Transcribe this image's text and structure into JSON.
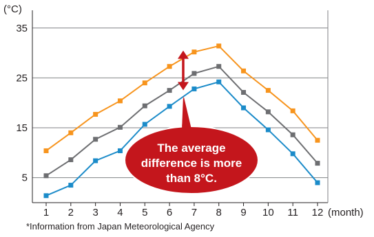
{
  "chart_data": {
    "type": "line",
    "y_unit": "(°C)",
    "x_unit": "(month)",
    "categories": [
      "1",
      "2",
      "3",
      "4",
      "5",
      "6",
      "7",
      "8",
      "9",
      "10",
      "11",
      "12"
    ],
    "ylim": [
      0,
      38
    ],
    "yticks": [
      5,
      15,
      25,
      35
    ],
    "grid": true,
    "series": [
      {
        "color": "#f7941d",
        "values": [
          10.4,
          14.0,
          17.7,
          20.4,
          24.0,
          27.3,
          30.2,
          31.4,
          26.4,
          22.5,
          18.4,
          12.5
        ]
      },
      {
        "color": "#6d6e71",
        "values": [
          5.4,
          8.6,
          12.7,
          15.1,
          19.4,
          22.5,
          25.9,
          27.3,
          22.1,
          18.2,
          13.6,
          7.9
        ]
      },
      {
        "color": "#1b8bc9",
        "values": [
          1.4,
          3.5,
          8.4,
          10.4,
          15.7,
          19.3,
          22.8,
          24.2,
          19.0,
          14.6,
          9.8,
          4.0
        ]
      }
    ],
    "annotation": {
      "lines": [
        "The average",
        "difference is more",
        "than 8°C."
      ],
      "color": "#c4161c"
    }
  },
  "footnote": "*Information from Japan Meteorological Agency"
}
